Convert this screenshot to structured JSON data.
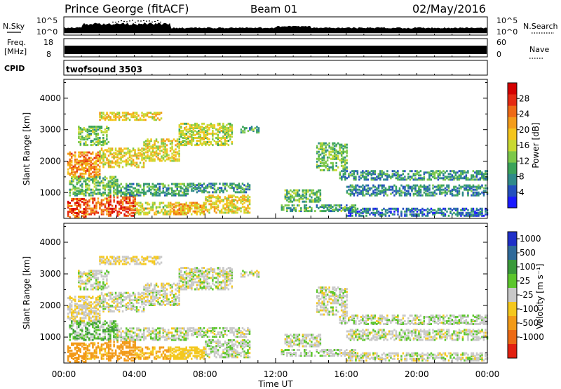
{
  "header": {
    "station": "Prince George (fitACF)",
    "beam": "Beam 01",
    "date": "02/May/2016"
  },
  "noise_panel": {
    "left_label": "N.Sky",
    "right_label": "N.Search",
    "left_ticks": [
      "10^5",
      "10^0"
    ],
    "right_ticks": [
      "10^5",
      "10^0"
    ]
  },
  "freq_panel": {
    "left_label_line1": "Freq.",
    "left_label_line2": "[MHz]",
    "left_ticks": [
      "18",
      "8"
    ],
    "right_label": "Nave",
    "right_ticks": [
      "60",
      "0"
    ]
  },
  "cpid_panel": {
    "label": "CPID",
    "value": "twofsound 3503"
  },
  "chart_data": [
    {
      "type": "heatmap",
      "name": "power",
      "ylabel": "Slant Range [km]",
      "xlabel": "",
      "xlim": [
        "00:00",
        "24:00"
      ],
      "ylim": [
        180,
        4600
      ],
      "yticks": [
        1000,
        2000,
        3000,
        4000
      ],
      "grid": false,
      "colorbar": {
        "label": "Power [dB]",
        "ticks": [
          "4",
          "8",
          "12",
          "16",
          "20",
          "24",
          "28"
        ],
        "range": [
          0,
          32
        ],
        "colors": [
          "#1a1aff",
          "#234fbe",
          "#2f8a8a",
          "#3aa35a",
          "#7cc84a",
          "#c8d932",
          "#f4c51d",
          "#f39c1a",
          "#ee6a16",
          "#e52a12",
          "#d40000"
        ]
      }
    },
    {
      "type": "heatmap",
      "name": "velocity",
      "ylabel": "Slant Range [km]",
      "xlabel": "Time UT",
      "xlim": [
        "00:00",
        "24:00"
      ],
      "ylim": [
        180,
        4600
      ],
      "yticks": [
        1000,
        2000,
        3000,
        4000
      ],
      "xticks": [
        "00:00",
        "04:00",
        "08:00",
        "12:00",
        "16:00",
        "20:00",
        "00:00"
      ],
      "grid": false,
      "colorbar": {
        "label": "Velocity [m s⁻¹]",
        "ticks": [
          "1000",
          "500",
          "100",
          "25",
          "-25",
          "-100",
          "-500",
          "-1000"
        ],
        "colors": [
          "#1f2fc8",
          "#2f6a9a",
          "#3a9a3a",
          "#5cc62c",
          "#c8c8c8",
          "#f4c81e",
          "#f29a18",
          "#ec6a14",
          "#e22010"
        ]
      }
    }
  ],
  "echo_regions": [
    {
      "t0": 0.2,
      "t1": 1.2,
      "r0": 200,
      "r1": 800,
      "p": 26,
      "v": -150
    },
    {
      "t0": 1.2,
      "t1": 2.5,
      "r0": 300,
      "r1": 800,
      "p": 24,
      "v": -120
    },
    {
      "t0": 2.5,
      "t1": 4.0,
      "r0": 250,
      "r1": 900,
      "p": 27,
      "v": -200
    },
    {
      "t0": 4.0,
      "t1": 6.0,
      "r0": 300,
      "r1": 700,
      "p": 16,
      "v": -100
    },
    {
      "t0": 6.0,
      "t1": 8.0,
      "r0": 300,
      "r1": 700,
      "p": 20,
      "v": -60
    },
    {
      "t0": 8.0,
      "t1": 10.5,
      "r0": 350,
      "r1": 900,
      "p": 18,
      "v": 10
    },
    {
      "t0": 0.3,
      "t1": 3.0,
      "r0": 900,
      "r1": 1500,
      "p": 12,
      "v": 40
    },
    {
      "t0": 3.0,
      "t1": 7.0,
      "r0": 900,
      "r1": 1300,
      "p": 10,
      "v": 5
    },
    {
      "t0": 7.0,
      "t1": 10.5,
      "r0": 1000,
      "r1": 1300,
      "p": 9,
      "v": 5
    },
    {
      "t0": 0.2,
      "t1": 2.0,
      "r0": 1500,
      "r1": 2300,
      "p": 22,
      "v": -20
    },
    {
      "t0": 2.0,
      "t1": 4.5,
      "r0": 1800,
      "r1": 2400,
      "p": 18,
      "v": 0
    },
    {
      "t0": 4.5,
      "t1": 6.5,
      "r0": 2000,
      "r1": 2700,
      "p": 17,
      "v": 0
    },
    {
      "t0": 6.5,
      "t1": 9.5,
      "r0": 2500,
      "r1": 3200,
      "p": 16,
      "v": 0
    },
    {
      "t0": 0.8,
      "t1": 2.5,
      "r0": 2500,
      "r1": 3100,
      "p": 13,
      "v": 5
    },
    {
      "t0": 2.0,
      "t1": 5.5,
      "r0": 3300,
      "r1": 3550,
      "p": 18,
      "v": -30
    },
    {
      "t0": 10.0,
      "t1": 11.0,
      "r0": 2900,
      "r1": 3100,
      "p": 10,
      "v": 0
    },
    {
      "t0": 12.3,
      "t1": 16.5,
      "r0": 400,
      "r1": 600,
      "p": 10,
      "v": 5
    },
    {
      "t0": 12.5,
      "t1": 14.5,
      "r0": 700,
      "r1": 1100,
      "p": 11,
      "v": 5
    },
    {
      "t0": 14.3,
      "t1": 16.0,
      "r0": 1700,
      "r1": 2600,
      "p": 12,
      "v": 0
    },
    {
      "t0": 15.5,
      "t1": 24.0,
      "r0": 1400,
      "r1": 1700,
      "p": 9,
      "v": 10
    },
    {
      "t0": 16.0,
      "t1": 24.0,
      "r0": 900,
      "r1": 1250,
      "p": 8,
      "v": 5
    },
    {
      "t0": 16.0,
      "t1": 24.0,
      "r0": 250,
      "r1": 500,
      "p": 6,
      "v": 0
    }
  ]
}
